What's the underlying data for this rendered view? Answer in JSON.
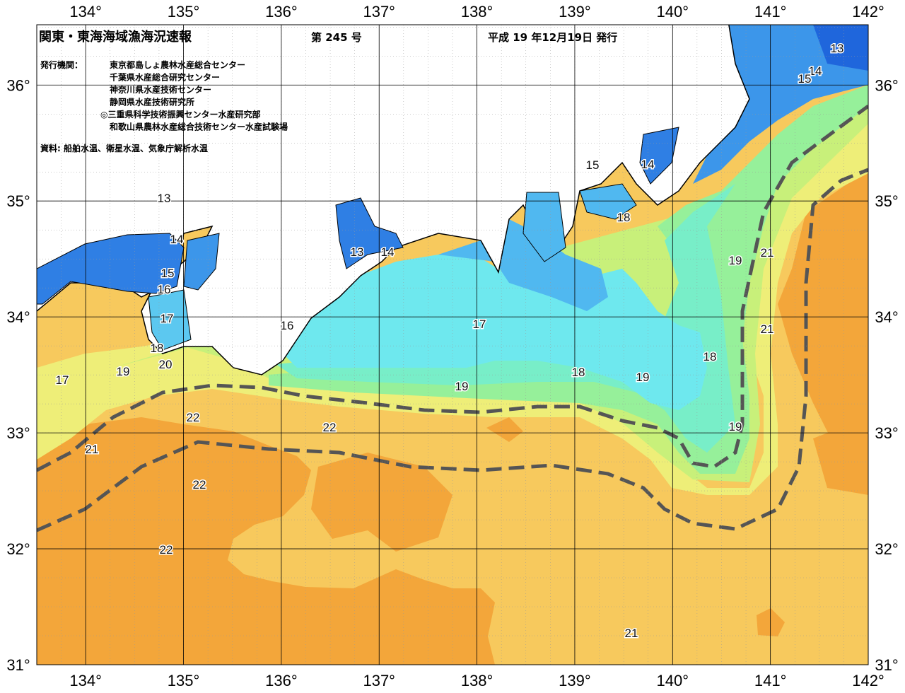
{
  "header": {
    "title": "関東・東海海域漁海況速報",
    "issue": "第 245 号",
    "date": "平成 19 年12月19日 発行",
    "publisher_label": "発行機関：",
    "publishers": [
      "東京都島しょ農林水産総合センター",
      "千葉県水産総合研究センター",
      "神奈川県水産技術センター",
      "静岡県水産技術研究所",
      "◎三重県科学技術振興センター水産研究部",
      "和歌山県農林水産総合技術センター水産試験場"
    ],
    "source": "資料: 船舶水温、衛星水温、気象庁解析水温"
  },
  "map": {
    "lon_range": [
      133.5,
      142
    ],
    "lat_range": [
      31,
      36.52
    ],
    "lon_ticks": [
      {
        "value": 134,
        "label": "134°"
      },
      {
        "value": 135,
        "label": "135°"
      },
      {
        "value": 136,
        "label": "136°"
      },
      {
        "value": 137,
        "label": "137°"
      },
      {
        "value": 138,
        "label": "138°"
      },
      {
        "value": 139,
        "label": "139°"
      },
      {
        "value": 140,
        "label": "140°"
      },
      {
        "value": 141,
        "label": "141°"
      },
      {
        "value": 142,
        "label": "142°"
      }
    ],
    "lat_ticks": [
      {
        "value": 31,
        "label": "31°"
      },
      {
        "value": 32,
        "label": "32°"
      },
      {
        "value": 33,
        "label": "33°"
      },
      {
        "value": 34,
        "label": "34°"
      },
      {
        "value": 35,
        "label": "35°"
      },
      {
        "value": 36,
        "label": "36°"
      }
    ],
    "contour_labels": [
      13,
      14,
      15,
      16,
      17,
      18,
      20,
      19,
      17,
      21,
      22,
      22,
      22,
      22,
      16,
      13,
      14,
      17,
      19,
      18,
      19,
      15,
      14,
      18,
      19,
      21,
      21,
      18,
      19,
      21,
      13,
      14,
      15
    ]
  }
}
